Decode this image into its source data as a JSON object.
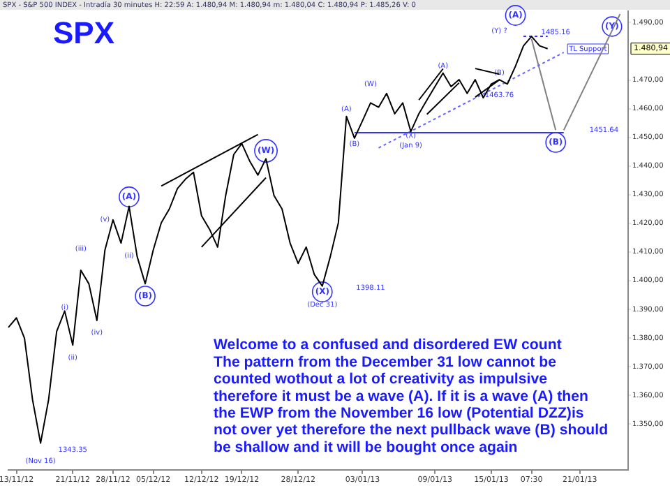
{
  "chart_data": {
    "type": "line",
    "title": "SPX",
    "subtitle": "SPX - S&P 500 INDEX - Intradía 30 minutes H: 22:59 A: 1.480,94 M: 1.480,94 m: 1.480,04 C: 1.480,94 P: 1.485,26 V: 0",
    "categories": [
      null,
      "13/11/12",
      null,
      null,
      null,
      null,
      null,
      null,
      "21/11/12",
      null,
      null,
      null,
      null,
      "28/11/12",
      null,
      null,
      null,
      null,
      "05/12/12",
      null,
      null,
      null,
      null,
      null,
      "12/12/12",
      null,
      null,
      null,
      null,
      "19/12/12",
      null,
      null,
      null,
      null,
      null,
      null,
      "28/12/12",
      null,
      null,
      null,
      null,
      null,
      null,
      null,
      "03/01/13",
      null,
      null,
      null,
      null,
      null,
      null,
      null,
      null,
      "09/01/13",
      null,
      null,
      null,
      null,
      null,
      null,
      "15/01/13",
      null,
      null,
      null,
      null,
      "07:30",
      null,
      null,
      null,
      null,
      null,
      "21/01/13",
      null,
      null,
      null,
      null,
      null,
      null
    ],
    "ylim": [
      1334,
      1494
    ],
    "yticks": [
      {
        "value": 1350,
        "label": "1.350,00"
      },
      {
        "value": 1360,
        "label": "1.360,00"
      },
      {
        "value": 1370,
        "label": "1.370,00"
      },
      {
        "value": 1380,
        "label": "1.380,00"
      },
      {
        "value": 1390,
        "label": "1.390,00"
      },
      {
        "value": 1400,
        "label": "1.400,00"
      },
      {
        "value": 1410,
        "label": "1.410,00"
      },
      {
        "value": 1420,
        "label": "1.420,00"
      },
      {
        "value": 1430,
        "label": "1.430,00"
      },
      {
        "value": 1440,
        "label": "1.440,00"
      },
      {
        "value": 1450,
        "label": "1.450,00"
      },
      {
        "value": 1460,
        "label": "1.460,00"
      },
      {
        "value": 1470,
        "label": "1.470,00"
      },
      {
        "value": 1490,
        "label": "1.490,00"
      }
    ],
    "grid": false,
    "legend": false,
    "marker": "none",
    "series": [
      {
        "color": "#000000",
        "values": [
          1383.7,
          1387,
          1379.9,
          1358.5,
          1343.3,
          1358.5,
          1382.3,
          1389.4,
          1377.5,
          1403.6,
          1398.9,
          1386.1,
          1410.7,
          1421.2,
          1413.1,
          1425.9,
          1408.4,
          1398.9,
          1410.7,
          1420.2,
          1425,
          1432.1,
          1435.4,
          1437.8,
          1422.6,
          1417.9,
          1411.7,
          1429.7,
          1444,
          1447.8,
          1441.6,
          1436.8,
          1442.5,
          1429.7,
          1425,
          1413.1,
          1406,
          1411.7,
          1402.2,
          1398.1,
          1408.4,
          1420.2,
          1457.3,
          1449.7,
          1455.8,
          1462,
          1460.5,
          1465.3,
          1458.2,
          1462,
          1452,
          1458.2,
          1463,
          1467.7,
          1472.4,
          1467.7,
          1470.1,
          1465.3,
          1470.1,
          1463.8,
          1468.6,
          1470.1,
          1468.6,
          1474.8,
          1481.9,
          1485.2,
          1481.9,
          1480.9,
          null,
          null,
          null,
          null,
          null,
          null,
          null,
          null,
          null,
          null
        ]
      },
      {
        "color": "#3333ff",
        "values": [
          null,
          null,
          null,
          null,
          null,
          null,
          null,
          null,
          null,
          null,
          null,
          null,
          null,
          null,
          null,
          null,
          null,
          null,
          null,
          null,
          null,
          null,
          null,
          null,
          null,
          null,
          null,
          null,
          null,
          null,
          null,
          null,
          null,
          null,
          null,
          null,
          null,
          null,
          null,
          null,
          null,
          null,
          null,
          1451.6,
          null,
          null,
          null,
          null,
          null,
          null,
          null,
          null,
          null,
          null,
          null,
          null,
          null,
          null,
          null,
          null,
          null,
          null,
          null,
          null,
          null,
          null,
          null,
          null,
          null,
          1451.6,
          null,
          null,
          null,
          null,
          null,
          null,
          null,
          null
        ]
      },
      {
        "color": "#000000",
        "values": [
          null,
          null,
          null,
          null,
          null,
          null,
          null,
          null,
          null,
          null,
          null,
          null,
          null,
          null,
          null,
          null,
          null,
          null,
          null,
          1433,
          null,
          null,
          null,
          null,
          null,
          null,
          null,
          null,
          null,
          null,
          null,
          1451,
          null,
          null,
          null,
          null,
          null,
          null,
          null,
          null,
          null,
          null,
          null,
          null,
          null,
          null,
          null,
          null,
          null,
          null,
          null,
          null,
          null,
          null,
          null,
          null,
          null,
          null,
          null,
          null,
          null,
          null,
          null,
          null,
          null,
          null,
          null,
          null,
          null,
          null,
          null,
          null,
          null,
          null,
          null,
          null,
          null,
          null
        ]
      },
      {
        "color": "#000000",
        "values": [
          null,
          null,
          null,
          null,
          null,
          null,
          null,
          null,
          null,
          null,
          null,
          null,
          null,
          null,
          null,
          null,
          null,
          null,
          null,
          null,
          null,
          null,
          null,
          null,
          1411.7,
          null,
          null,
          null,
          null,
          null,
          null,
          null,
          1435.9,
          null,
          null,
          null,
          null,
          null,
          null,
          null,
          null,
          null,
          null,
          null,
          null,
          null,
          null,
          null,
          null,
          null,
          null,
          null,
          null,
          null,
          null,
          null,
          null,
          null,
          null,
          null,
          null,
          null,
          null,
          null,
          null,
          null,
          null,
          null,
          null,
          null,
          null,
          null,
          null,
          null,
          null,
          null,
          null,
          null
        ]
      },
      {
        "color": "#000000",
        "values": [
          null,
          null,
          null,
          null,
          null,
          null,
          null,
          null,
          null,
          null,
          null,
          null,
          null,
          null,
          null,
          null,
          null,
          null,
          null,
          null,
          null,
          null,
          null,
          null,
          null,
          null,
          null,
          null,
          null,
          null,
          null,
          null,
          null,
          null,
          null,
          null,
          null,
          null,
          null,
          null,
          null,
          null,
          null,
          null,
          null,
          null,
          null,
          null,
          null,
          null,
          null,
          1463,
          null,
          null,
          1473.9,
          null,
          null,
          null,
          null,
          null,
          null,
          null,
          null,
          null,
          null,
          null,
          null,
          null,
          null,
          null,
          null,
          null,
          null,
          null,
          null,
          null,
          null,
          null
        ]
      },
      {
        "color": "#000000",
        "values": [
          null,
          null,
          null,
          null,
          null,
          null,
          null,
          null,
          null,
          null,
          null,
          null,
          null,
          null,
          null,
          null,
          null,
          null,
          null,
          null,
          null,
          null,
          null,
          null,
          null,
          null,
          null,
          null,
          null,
          null,
          null,
          null,
          null,
          null,
          null,
          null,
          null,
          null,
          null,
          null,
          null,
          null,
          null,
          null,
          null,
          null,
          null,
          null,
          null,
          null,
          null,
          null,
          1458,
          null,
          null,
          null,
          1469,
          null,
          null,
          null,
          null,
          null,
          null,
          null,
          null,
          null,
          null,
          null,
          null,
          null,
          null,
          null,
          null,
          null,
          null,
          null,
          null,
          null
        ]
      },
      {
        "color": "#000000",
        "values": [
          null,
          null,
          null,
          null,
          null,
          null,
          null,
          null,
          null,
          null,
          null,
          null,
          null,
          null,
          null,
          null,
          null,
          null,
          null,
          null,
          null,
          null,
          null,
          null,
          null,
          null,
          null,
          null,
          null,
          null,
          null,
          null,
          null,
          null,
          null,
          null,
          null,
          null,
          null,
          null,
          null,
          null,
          null,
          null,
          null,
          null,
          null,
          null,
          null,
          null,
          null,
          null,
          null,
          null,
          null,
          null,
          null,
          null,
          1474,
          null,
          null,
          1472,
          null,
          null,
          null,
          null,
          null,
          null,
          null,
          null,
          null,
          null,
          null,
          null,
          null,
          null,
          null,
          null
        ]
      },
      {
        "color": "#000000",
        "values": [
          null,
          null,
          null,
          null,
          null,
          null,
          null,
          null,
          null,
          null,
          null,
          null,
          null,
          null,
          null,
          null,
          null,
          null,
          null,
          null,
          null,
          null,
          null,
          null,
          null,
          null,
          null,
          null,
          null,
          null,
          null,
          null,
          null,
          null,
          null,
          null,
          null,
          null,
          null,
          null,
          null,
          null,
          null,
          null,
          null,
          null,
          null,
          null,
          null,
          null,
          null,
          null,
          null,
          null,
          null,
          null,
          null,
          null,
          1464,
          null,
          null,
          1470,
          null,
          null,
          null,
          null,
          null,
          null,
          null,
          null,
          null,
          null,
          null,
          null,
          null,
          null,
          null,
          null
        ]
      },
      {
        "color": "#6666ff",
        "line_style": "dotted",
        "values": [
          null,
          null,
          null,
          null,
          null,
          null,
          null,
          null,
          null,
          null,
          null,
          null,
          null,
          null,
          null,
          null,
          null,
          null,
          null,
          null,
          null,
          null,
          null,
          null,
          null,
          null,
          null,
          null,
          null,
          null,
          null,
          null,
          null,
          null,
          null,
          null,
          null,
          null,
          null,
          null,
          null,
          null,
          null,
          null,
          null,
          null,
          1446.3,
          null,
          null,
          null,
          null,
          null,
          null,
          null,
          null,
          null,
          null,
          null,
          null,
          null,
          null,
          null,
          null,
          null,
          null,
          null,
          null,
          null,
          null,
          1479.6,
          null,
          null,
          null,
          null,
          null,
          null,
          null,
          null
        ]
      },
      {
        "color": "#3333ff",
        "line_style": "dotted",
        "values": [
          null,
          null,
          null,
          null,
          null,
          null,
          null,
          null,
          null,
          null,
          null,
          null,
          null,
          null,
          null,
          null,
          null,
          null,
          null,
          null,
          null,
          null,
          null,
          null,
          null,
          null,
          null,
          null,
          null,
          null,
          null,
          null,
          null,
          null,
          null,
          null,
          null,
          null,
          null,
          null,
          null,
          null,
          null,
          null,
          null,
          null,
          null,
          null,
          null,
          null,
          null,
          null,
          null,
          null,
          null,
          null,
          null,
          null,
          null,
          null,
          null,
          null,
          null,
          null,
          1485.2,
          null,
          null,
          1485.2,
          null,
          null,
          null,
          null,
          null,
          null,
          null,
          null,
          null,
          null
        ]
      },
      {
        "color": "#808080",
        "values": [
          null,
          null,
          null,
          null,
          null,
          null,
          null,
          null,
          null,
          null,
          null,
          null,
          null,
          null,
          null,
          null,
          null,
          null,
          null,
          null,
          null,
          null,
          null,
          null,
          null,
          null,
          null,
          null,
          null,
          null,
          null,
          null,
          null,
          null,
          null,
          null,
          null,
          null,
          null,
          null,
          null,
          null,
          null,
          null,
          null,
          null,
          null,
          null,
          null,
          null,
          null,
          null,
          null,
          null,
          null,
          null,
          null,
          null,
          null,
          null,
          null,
          null,
          null,
          null,
          null,
          1484.3,
          null,
          null,
          1452.5,
          null,
          null,
          null,
          null,
          null,
          null,
          null,
          null,
          null
        ]
      },
      {
        "color": "#808080",
        "values": [
          null,
          null,
          null,
          null,
          null,
          null,
          null,
          null,
          null,
          null,
          null,
          null,
          null,
          null,
          null,
          null,
          null,
          null,
          null,
          null,
          null,
          null,
          null,
          null,
          null,
          null,
          null,
          null,
          null,
          null,
          null,
          null,
          null,
          null,
          null,
          null,
          null,
          null,
          null,
          null,
          null,
          null,
          null,
          null,
          null,
          null,
          null,
          null,
          null,
          null,
          null,
          null,
          null,
          null,
          null,
          null,
          null,
          null,
          null,
          null,
          null,
          null,
          null,
          null,
          null,
          null,
          null,
          null,
          null,
          1452.5,
          null,
          null,
          null,
          null,
          null,
          null,
          1493,
          null
        ]
      }
    ],
    "annotations": [
      "(i)",
      "(ii)",
      "(iii)",
      "(iv)",
      "(v)",
      "(ii)",
      "(A)",
      "(B)",
      "(W)",
      "(X)",
      "(Dec 31)",
      "(Nov 16)",
      "1343.35",
      "1398.11",
      "(A)",
      "(B)",
      "(W)",
      "(X)",
      "(Jan 9)",
      "(A)",
      "(B)",
      "1463.76",
      "(A)",
      "(Y) ?",
      "1485.16",
      "TL Support",
      "1451.64",
      "(B)",
      "(Y)",
      "1.480,94",
      "Welcome to a confused and disordered EW count\nThe pattern from the December 31 low cannot be\ncounted wothout a lot of creativity as impulsive\ntherefore it must be a wave (A). If it is a wave (A) then\nthe EWP from the November 16 low (Potential DZZ)is\nnot over yet therefore the next pullback wave (B) should\nbe shallow and it will be bought once again"
    ]
  }
}
